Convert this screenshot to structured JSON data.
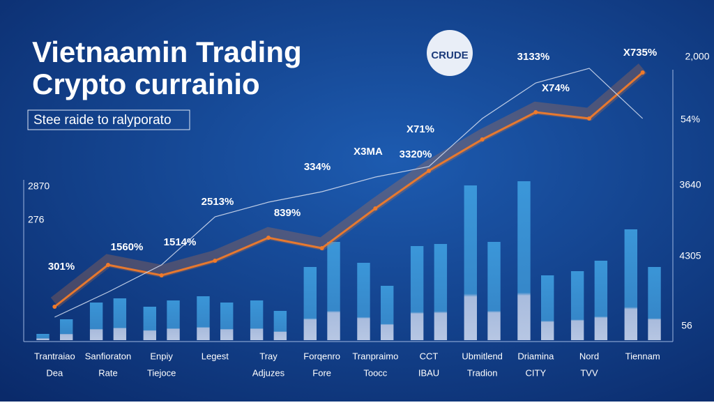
{
  "chart_data": {
    "type": "bar",
    "title_lines": [
      "Vietnaamin Trading",
      "Crypto currainio"
    ],
    "subtitle": "Stee raide to ralyporato",
    "logo": "CRUDE",
    "categories": [
      "Trantraiao",
      "Sanfioraton",
      "Enpiy",
      "Legest",
      "Tray",
      "Forqenro",
      "Tranpraimo",
      "CCT",
      "Ubmitlend",
      "Driamina",
      "Nord",
      "Tiennam"
    ],
    "category_sublabels": [
      "Dea",
      "Rate",
      "Tiejoce",
      null,
      "Adjuzes",
      "Fore",
      "Toocc",
      "IBAU",
      "Tradion",
      "CITY",
      "TVV",
      null
    ],
    "ylim": [
      0,
      135
    ],
    "bars": {
      "color": "#3a9ad9",
      "values": [
        3,
        10,
        18,
        20,
        16,
        19,
        21,
        18,
        19,
        14,
        35,
        47,
        37,
        26,
        45,
        46,
        74,
        47,
        76,
        31,
        33,
        38,
        53,
        35
      ]
    },
    "series": [
      {
        "name": "Trend",
        "color": "#f07a2a",
        "values": [
          16,
          36,
          31,
          38,
          49,
          44,
          63,
          81,
          96,
          109,
          106,
          128
        ]
      },
      {
        "name": "Index",
        "color": "#c8d4ea",
        "values": [
          11,
          23,
          36,
          59,
          66,
          71,
          78,
          83,
          106,
          123,
          130,
          106
        ]
      }
    ],
    "annotations": [
      "301%",
      "1560%",
      "1514%",
      "2513%",
      "334%",
      "X3MA",
      "839%",
      "X71%",
      "3320%",
      "3133%",
      "X74%",
      "X735%"
    ],
    "left_labels": [
      "2870",
      "276"
    ],
    "right_labels": [
      "2,000",
      "54%",
      "3640",
      "4305",
      "56"
    ]
  }
}
